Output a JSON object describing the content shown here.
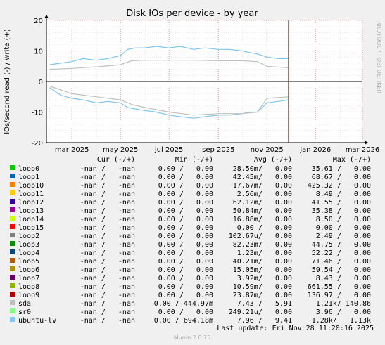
{
  "chart_data": {
    "type": "line",
    "title": "Disk IOs per device - by year",
    "ylabel": "IOs/second read (-) / write (+)",
    "ylim": [
      -20,
      20
    ],
    "yticks": [
      20,
      10,
      0,
      -10,
      -20
    ],
    "xlim": [
      "2025-01-28",
      "2026-03-01"
    ],
    "xticks": [
      {
        "label": "mar 2025",
        "date": "2025-03-01"
      },
      {
        "label": "may 2025",
        "date": "2025-05-01"
      },
      {
        "label": "jul 2025",
        "date": "2025-07-01"
      },
      {
        "label": "sep 2025",
        "date": "2025-09-01"
      },
      {
        "label": "nov 2025",
        "date": "2025-11-01"
      },
      {
        "label": "jan 2026",
        "date": "2026-01-01"
      },
      {
        "label": "mar 2026",
        "date": "2026-03-01"
      }
    ],
    "now_marker": "2025-11-28",
    "grid": true,
    "side_label": "RRDTOOL / TOBI OETIKER",
    "series": [
      {
        "name": "ubuntu-lv (write)",
        "color": "#7fc4ec",
        "x": [
          "2025-02-01",
          "2025-02-15",
          "2025-03-01",
          "2025-03-15",
          "2025-04-01",
          "2025-04-15",
          "2025-05-01",
          "2025-05-10",
          "2025-05-20",
          "2025-06-01",
          "2025-06-15",
          "2025-07-01",
          "2025-07-15",
          "2025-08-01",
          "2025-08-15",
          "2025-09-01",
          "2025-09-15",
          "2025-10-01",
          "2025-10-10",
          "2025-10-20",
          "2025-11-01",
          "2025-11-15",
          "2025-11-28"
        ],
        "values": [
          5.5,
          6.0,
          6.5,
          7.5,
          7.0,
          7.5,
          8.5,
          10.5,
          11.0,
          11.0,
          11.5,
          11.0,
          11.5,
          10.5,
          11.0,
          10.5,
          10.5,
          10.0,
          9.5,
          9.0,
          8.0,
          7.5,
          7.5
        ]
      },
      {
        "name": "ubuntu-lv (read)",
        "color": "#7fc4ec",
        "x": [
          "2025-02-01",
          "2025-02-15",
          "2025-03-01",
          "2025-03-15",
          "2025-04-01",
          "2025-04-15",
          "2025-05-01",
          "2025-05-10",
          "2025-05-20",
          "2025-06-01",
          "2025-06-15",
          "2025-07-01",
          "2025-07-15",
          "2025-08-01",
          "2025-08-15",
          "2025-09-01",
          "2025-09-15",
          "2025-10-01",
          "2025-10-10",
          "2025-10-20",
          "2025-11-01",
          "2025-11-15",
          "2025-11-28"
        ],
        "values": [
          -2.0,
          -4.5,
          -5.5,
          -6.0,
          -7.0,
          -6.5,
          -7.0,
          -8.5,
          -9.0,
          -9.5,
          -10.0,
          -11.0,
          -11.5,
          -12.0,
          -11.5,
          -11.0,
          -11.0,
          -10.5,
          -10.0,
          -10.0,
          -7.0,
          -6.5,
          -6.0
        ]
      },
      {
        "name": "sda (write)",
        "color": "#c0c0c0",
        "x": [
          "2025-02-01",
          "2025-03-01",
          "2025-04-01",
          "2025-05-01",
          "2025-05-15",
          "2025-06-01",
          "2025-07-01",
          "2025-08-01",
          "2025-09-01",
          "2025-10-01",
          "2025-10-20",
          "2025-11-01",
          "2025-11-28"
        ],
        "values": [
          4.0,
          4.3,
          4.8,
          5.5,
          6.8,
          7.0,
          7.0,
          7.0,
          6.8,
          6.8,
          6.5,
          5.0,
          4.5
        ]
      },
      {
        "name": "sda (read)",
        "color": "#c0c0c0",
        "x": [
          "2025-02-01",
          "2025-03-01",
          "2025-04-01",
          "2025-05-01",
          "2025-05-15",
          "2025-06-01",
          "2025-07-01",
          "2025-08-01",
          "2025-09-01",
          "2025-10-01",
          "2025-10-20",
          "2025-11-01",
          "2025-11-28"
        ],
        "values": [
          -1.5,
          -4.0,
          -5.0,
          -6.0,
          -7.5,
          -8.5,
          -10.0,
          -11.0,
          -10.5,
          -10.5,
          -10.0,
          -5.5,
          -5.0
        ]
      }
    ]
  },
  "legend": {
    "headers": {
      "cur": "Cur (-/+)",
      "min": "Min (-/+)",
      "avg": "Avg (-/+)",
      "max": "Max (-/+)"
    },
    "rows": [
      {
        "name": "loop0",
        "color": "#00cc00",
        "cur": "-nan /   -nan",
        "min": "0.00 /   0.00",
        "avg": "28.50m/   0.00",
        "max": "35.61 /   0.00"
      },
      {
        "name": "loop1",
        "color": "#0066b3",
        "cur": "-nan /   -nan",
        "min": "0.00 /   0.00",
        "avg": "42.45m/   0.00",
        "max": "68.67 /   0.00"
      },
      {
        "name": "loop10",
        "color": "#ff8000",
        "cur": "-nan /   -nan",
        "min": "0.00 /   0.00",
        "avg": "17.67m/   0.00",
        "max": "425.32 /   0.00"
      },
      {
        "name": "loop11",
        "color": "#ffcc00",
        "cur": "-nan /   -nan",
        "min": "0.00 /   0.00",
        "avg": "2.56m/   0.00",
        "max": "8.49 /   0.00"
      },
      {
        "name": "loop12",
        "color": "#330099",
        "cur": "-nan /   -nan",
        "min": "0.00 /   0.00",
        "avg": "62.12m/   0.00",
        "max": "41.55 /   0.00"
      },
      {
        "name": "loop13",
        "color": "#990099",
        "cur": "-nan /   -nan",
        "min": "0.00 /   0.00",
        "avg": "50.84m/   0.00",
        "max": "35.38 /   0.00"
      },
      {
        "name": "loop14",
        "color": "#ccff00",
        "cur": "-nan /   -nan",
        "min": "0.00 /   0.00",
        "avg": "16.88m/   0.00",
        "max": "8.50 /   0.00"
      },
      {
        "name": "loop15",
        "color": "#ff0000",
        "cur": "-nan /   -nan",
        "min": "0.00 /   0.00",
        "avg": "0.00 /   0.00",
        "max": "0.00 /   0.00"
      },
      {
        "name": "loop2",
        "color": "#808080",
        "cur": "-nan /   -nan",
        "min": "0.00 /   0.00",
        "avg": "102.67u/   0.00",
        "max": "2.49 /   0.00"
      },
      {
        "name": "loop3",
        "color": "#008f00",
        "cur": "-nan /   -nan",
        "min": "0.00 /   0.00",
        "avg": "82.23m/   0.00",
        "max": "44.75 /   0.00"
      },
      {
        "name": "loop4",
        "color": "#00487d",
        "cur": "-nan /   -nan",
        "min": "0.00 /   0.00",
        "avg": "1.23m/   0.00",
        "max": "52.22 /   0.00"
      },
      {
        "name": "loop5",
        "color": "#b35a00",
        "cur": "-nan /   -nan",
        "min": "0.00 /   0.00",
        "avg": "40.21m/   0.00",
        "max": "71.46 /   0.00"
      },
      {
        "name": "loop6",
        "color": "#b38f00",
        "cur": "-nan /   -nan",
        "min": "0.00 /   0.00",
        "avg": "15.05m/   0.00",
        "max": "59.54 /   0.00"
      },
      {
        "name": "loop7",
        "color": "#6b006b",
        "cur": "-nan /   -nan",
        "min": "0.00 /   0.00",
        "avg": "3.92m/   0.00",
        "max": "8.43 /   0.00"
      },
      {
        "name": "loop8",
        "color": "#8fb300",
        "cur": "-nan /   -nan",
        "min": "0.00 /   0.00",
        "avg": "10.59m/   0.00",
        "max": "661.55 /   0.00"
      },
      {
        "name": "loop9",
        "color": "#b30000",
        "cur": "-nan /   -nan",
        "min": "0.00 /   0.00",
        "avg": "23.87m/   0.00",
        "max": "136.97 /   0.00"
      },
      {
        "name": "sda",
        "color": "#bebebe",
        "cur": "-nan /   -nan",
        "min": "0.00 / 444.97m",
        "avg": "7.43 /   5.91",
        "max": "1.21k/ 140.86"
      },
      {
        "name": "sr0",
        "color": "#80ff80",
        "cur": "-nan /   -nan",
        "min": "0.00 /   0.00",
        "avg": "249.21u/   0.00",
        "max": "3.96 /   0.00"
      },
      {
        "name": "ubuntu-lv",
        "color": "#80c9ff",
        "cur": "-nan /   -nan",
        "min": "0.00 / 694.18m",
        "avg": "7.96 /   9.41",
        "max": "1.28k/   1.13k"
      }
    ]
  },
  "last_update": "Last update: Fri Nov 28 11:20:16 2025",
  "footer": "Munin 2.0.75"
}
